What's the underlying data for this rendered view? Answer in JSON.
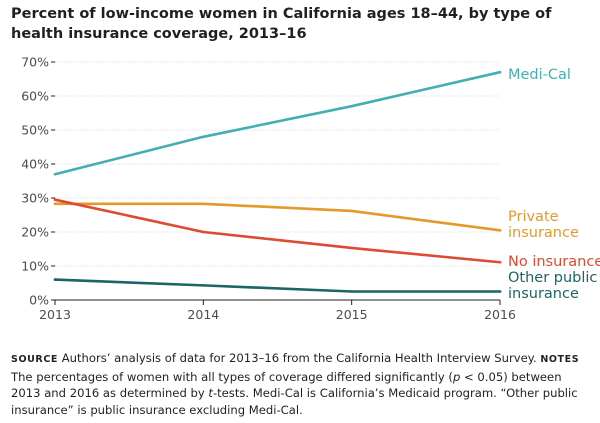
{
  "title": "Percent of low-income women in California ages 18–44, by type of health insurance coverage, 2013–16",
  "chart_data": {
    "type": "line",
    "title": "Percent of low-income women in California ages 18–44, by type of health insurance coverage, 2013–16",
    "x": [
      2013,
      2014,
      2015,
      2016
    ],
    "x_tick_labels": [
      "2013",
      "2014",
      "2015",
      "2016"
    ],
    "ylim": [
      0,
      70
    ],
    "y_ticks": [
      0,
      10,
      20,
      30,
      40,
      50,
      60,
      70
    ],
    "y_tick_labels": [
      "0%",
      "10%",
      "20%",
      "30%",
      "40%",
      "50%",
      "60%",
      "70%"
    ],
    "xlabel": "",
    "ylabel": "",
    "series": [
      {
        "name": "Medi-Cal",
        "label_lines": [
          "Medi-Cal"
        ],
        "color": "#45aeb1",
        "values": [
          37,
          48,
          57,
          67
        ]
      },
      {
        "name": "Private insurance",
        "label_lines": [
          "Private",
          "insurance"
        ],
        "color": "#e5992b",
        "values": [
          28.3,
          28.3,
          26.2,
          20.5
        ]
      },
      {
        "name": "No insurance",
        "label_lines": [
          "No insurance"
        ],
        "color": "#de4b33",
        "values": [
          29.5,
          20,
          15.3,
          11.1
        ]
      },
      {
        "name": "Other public insurance",
        "label_lines": [
          "Other public",
          "insurance"
        ],
        "color": "#1a6565",
        "values": [
          6,
          4.3,
          2.5,
          2.5
        ]
      }
    ]
  },
  "notes": {
    "source_label": "SOURCE",
    "source_text": "Authors’ analysis of data for 2013–16 from the California Health Interview Survey.",
    "notes_label": "NOTES",
    "notes_text_1": "The percentages of women with all types of coverage differed significantly (",
    "p_symbol": "p",
    "notes_text_2": " < 0.05) between 2013 and 2016 as determined by ",
    "t_symbol": "t",
    "notes_text_3": "-tests. Medi-Cal is California’s Medicaid program. “Other public insurance” is public insurance excluding Medi-Cal."
  }
}
